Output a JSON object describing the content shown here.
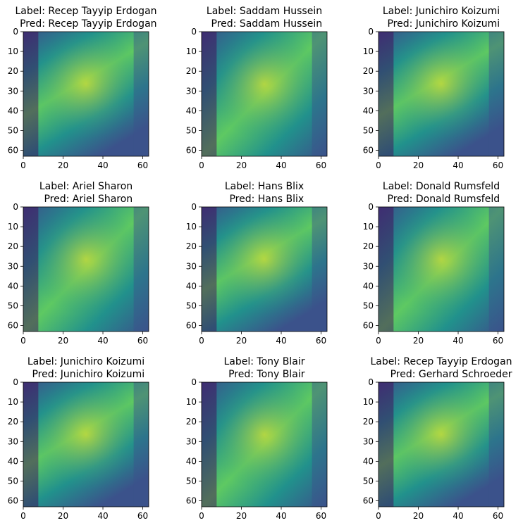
{
  "chart_data": {
    "type": "heatmap",
    "colormap": "viridis",
    "colormap_stops": [
      "#440154",
      "#3b528b",
      "#21918c",
      "#5ec962",
      "#fde725"
    ],
    "grid": "3x3",
    "axis_grid": false,
    "xlim": [
      0,
      63
    ],
    "ylim": [
      63,
      0
    ],
    "x_ticks": [
      0,
      20,
      40,
      60
    ],
    "y_ticks": [
      0,
      10,
      20,
      30,
      40,
      50,
      60
    ],
    "panels": [
      {
        "label": "Label: Recep Tayyip Erdogan",
        "pred": "Pred: Recep Tayyip Erdogan"
      },
      {
        "label": "Label: Saddam Hussein",
        "pred": "Pred: Saddam Hussein"
      },
      {
        "label": "Label: Junichiro Koizumi",
        "pred": "Pred: Junichiro Koizumi"
      },
      {
        "label": "Label: Ariel Sharon",
        "pred": "Pred: Ariel Sharon"
      },
      {
        "label": "Label: Hans Blix",
        "pred": "Pred: Hans Blix"
      },
      {
        "label": "Label: Donald Rumsfeld",
        "pred": "Pred: Donald Rumsfeld"
      },
      {
        "label": "Label: Junichiro Koizumi",
        "pred": "Pred: Junichiro Koizumi"
      },
      {
        "label": "Label: Tony Blair",
        "pred": "Pred: Tony Blair"
      },
      {
        "label": "Label: Recep Tayyip Erdogan",
        "pred": "Pred: Gerhard Schroeder"
      }
    ]
  }
}
